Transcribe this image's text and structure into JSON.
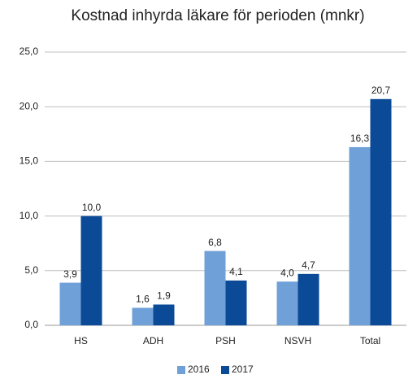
{
  "chart_data": {
    "type": "bar",
    "title": "Kostnad inhyrda läkare för perioden (mnkr)",
    "categories": [
      "HS",
      "ADH",
      "PSH",
      "NSVH",
      "Total"
    ],
    "series": [
      {
        "name": "2016",
        "color": "#6fa0d8",
        "values": [
          3.9,
          1.6,
          6.8,
          4.0,
          16.3
        ],
        "value_labels": [
          "3,9",
          "1,6",
          "6,8",
          "4,0",
          "16,3"
        ]
      },
      {
        "name": "2017",
        "color": "#0b4a96",
        "values": [
          10.0,
          1.9,
          4.1,
          4.7,
          20.7
        ],
        "value_labels": [
          "10,0",
          "1,9",
          "4,1",
          "4,7",
          "20,7"
        ]
      }
    ],
    "ylim": [
      0,
      25
    ],
    "yticks": [
      {
        "value": 0,
        "label": "0,0"
      },
      {
        "value": 5,
        "label": "5,0"
      },
      {
        "value": 10,
        "label": "10,0"
      },
      {
        "value": 15,
        "label": "15,0"
      },
      {
        "value": 20,
        "label": "20,0"
      },
      {
        "value": 25,
        "label": "25,0"
      }
    ],
    "grid": true,
    "legend": "bottom"
  }
}
